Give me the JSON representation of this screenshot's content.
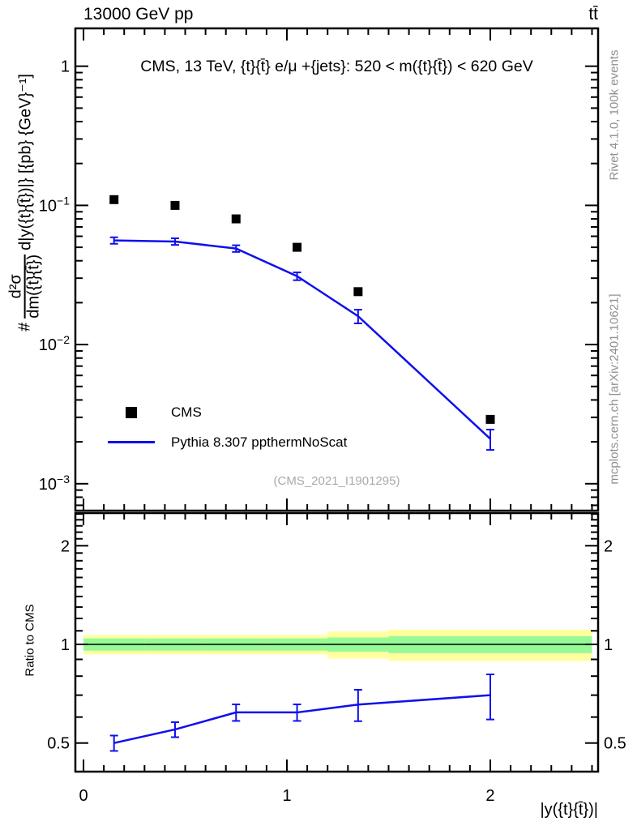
{
  "page": {
    "header_left": "13000 GeV pp",
    "header_right": "tt̄",
    "plot_title": "CMS, 13 TeV, {t}{t̄} e/μ +{jets}: 520 < m({t}{t̄}) < 620 GeV",
    "watermark": "(CMS_2021_I1901295)",
    "side_note_top": "Rivet 4.1.0,  100k events",
    "side_note_bottom": "mcplots.cern.ch [arXiv:2401.10621]",
    "ratio_axis_label": "Ratio to CMS",
    "x_axis_label": "|y({t}{t̄})|",
    "y_axis": {
      "prefix": "#",
      "frac_numerator": "d²σ",
      "frac_denominator": "dm({t}{t̄})",
      "suffix": "d|y({t}{t̄})|} [{pb} {GeV}⁻¹]"
    }
  },
  "legend": {
    "items": [
      {
        "label": "CMS",
        "marker": "black-square"
      },
      {
        "label": "Pythia 8.307 ppthermNoScat",
        "marker": "blue-line"
      }
    ]
  },
  "colors": {
    "mc_line": "#0f0fee",
    "data_marker": "#000000",
    "band_yellow": "#ffffa0",
    "band_green": "#96fa96",
    "frame": "#000000",
    "gray_text": "#8f8f8f"
  },
  "chart_data": {
    "type": "line",
    "title": "CMS, 13 TeV, {t}{t̄} e/μ +{jets}: 520 < m({t}{t̄}) < 620 GeV",
    "xlabel": "|y({t}{t̄})|",
    "ylabel": "# d²σ/dm({t}{t̄}) d|y({t}{t̄})|} [{pb} {GeV}⁻¹]",
    "ratio_label": "Ratio to CMS",
    "x_range": [
      -0.04,
      2.53
    ],
    "x_ticks": [
      0,
      1,
      2
    ],
    "x_minor_step": 0.1,
    "main_y_scale": "log",
    "main_y_range": [
      0.00065,
      1.87
    ],
    "main_y_tick_exponents": [
      0,
      -1,
      -2,
      -3
    ],
    "ratio_y_scale": "log",
    "ratio_y_range": [
      0.41,
      2.52
    ],
    "ratio_y_ticks": [
      0.5,
      1,
      2
    ],
    "bin_edges": [
      0,
      0.3,
      0.6,
      0.9,
      1.2,
      1.5,
      2.5
    ],
    "x": [
      0.15,
      0.45,
      0.75,
      1.05,
      1.35,
      2.0
    ],
    "series": [
      {
        "name": "CMS",
        "style": "scatter-squares",
        "values": [
          0.11,
          0.1,
          0.08,
          0.05,
          0.024,
          0.0029
        ]
      },
      {
        "name": "Pythia 8.307 ppthermNoScat",
        "style": "line-errorbars",
        "values": [
          0.056,
          0.055,
          0.049,
          0.031,
          0.016,
          0.0021
        ],
        "errors": [
          0.003,
          0.003,
          0.0027,
          0.002,
          0.0018,
          0.00035
        ]
      }
    ],
    "ratio": {
      "reference": 1.0,
      "values": [
        0.5,
        0.55,
        0.62,
        0.62,
        0.655,
        0.7
      ],
      "errors": [
        0.027,
        0.029,
        0.036,
        0.036,
        0.072,
        0.11
      ],
      "band_yellow_halfwidths": [
        0.068,
        0.068,
        0.068,
        0.068,
        0.095,
        0.11
      ],
      "band_green_halfwidths": [
        0.043,
        0.043,
        0.043,
        0.043,
        0.05,
        0.06
      ],
      "band_x_range": [
        0,
        2.5
      ]
    },
    "legend_position": "bottom-left-of-main-panel",
    "grid": false
  }
}
